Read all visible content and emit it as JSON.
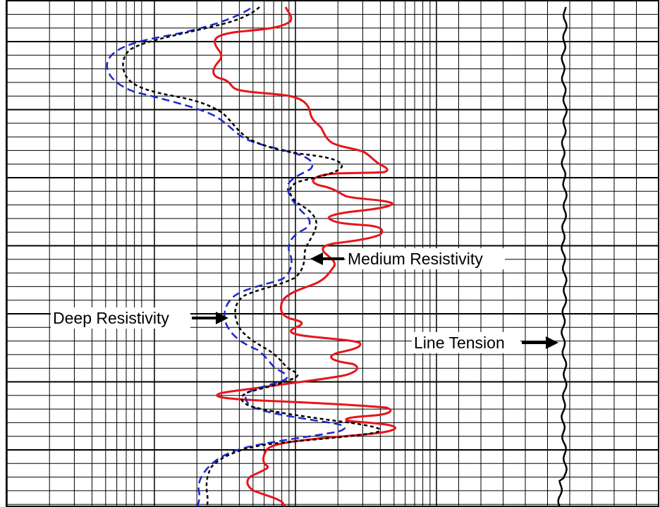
{
  "labels": {
    "medium": "Medium Resistivity",
    "deep": "Deep Resistivity",
    "tension": "Line Tension"
  },
  "colors": {
    "gamma": "#e8141b",
    "medium": "#000000",
    "deep": "#1a27c9",
    "tension": "#000000",
    "grid": "#000000"
  }
}
